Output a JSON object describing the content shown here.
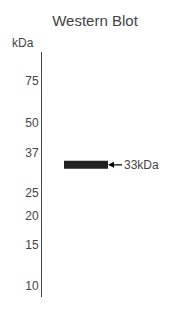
{
  "chart_data": {
    "type": "gel",
    "title": "Western Blot",
    "ylabel": "kDa",
    "values": [
      33
    ],
    "annotations": [
      "33kDa"
    ],
    "color": "#222222",
    "log": "y",
    "ylim": [
      9,
      100
    ],
    "yticks": [
      75,
      50,
      37,
      25,
      20,
      15,
      10
    ],
    "grid": false,
    "tick_labels": "y"
  }
}
